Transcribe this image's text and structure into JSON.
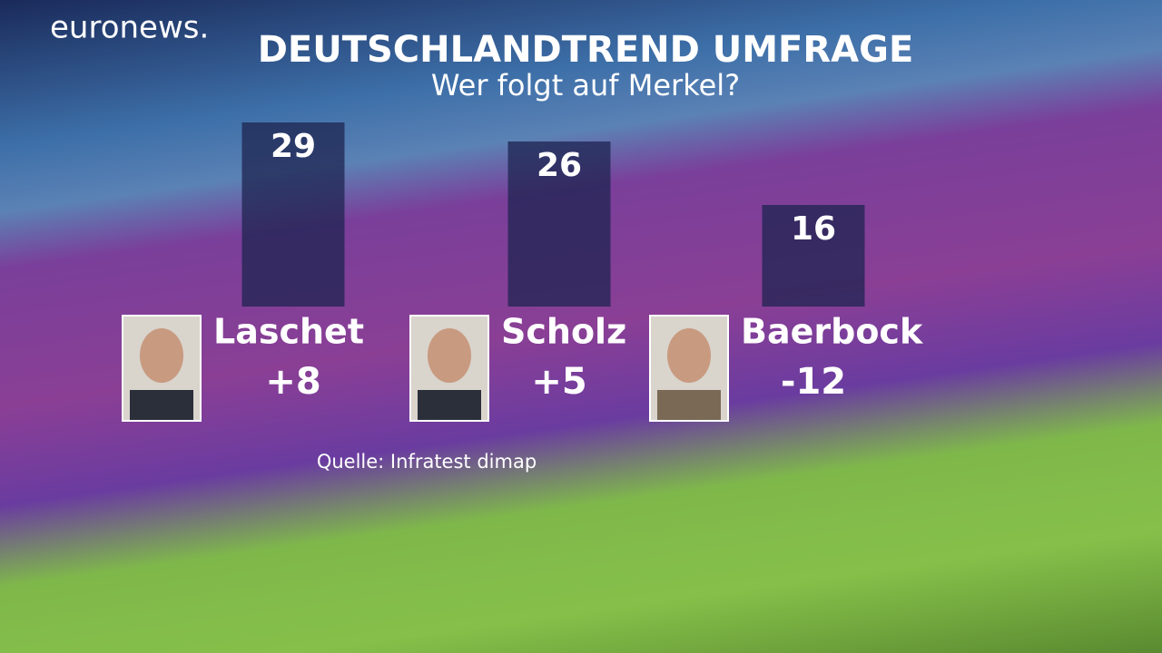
{
  "logo": "euronews.",
  "chart_data": {
    "type": "bar",
    "title": "DEUTSCHLANDTREND UMFRAGE",
    "subtitle": "Wer folgt auf Merkel?",
    "categories": [
      "Laschet",
      "Scholz",
      "Baerbock"
    ],
    "values": [
      29,
      26,
      16
    ],
    "changes": [
      8,
      5,
      -12
    ],
    "change_labels": [
      "+8",
      "+5",
      "-12"
    ],
    "color": "#1e2450",
    "positive_color": "#8fd07a",
    "negative_color": "#e0605e",
    "source": "Quelle: Infratest dimap"
  }
}
